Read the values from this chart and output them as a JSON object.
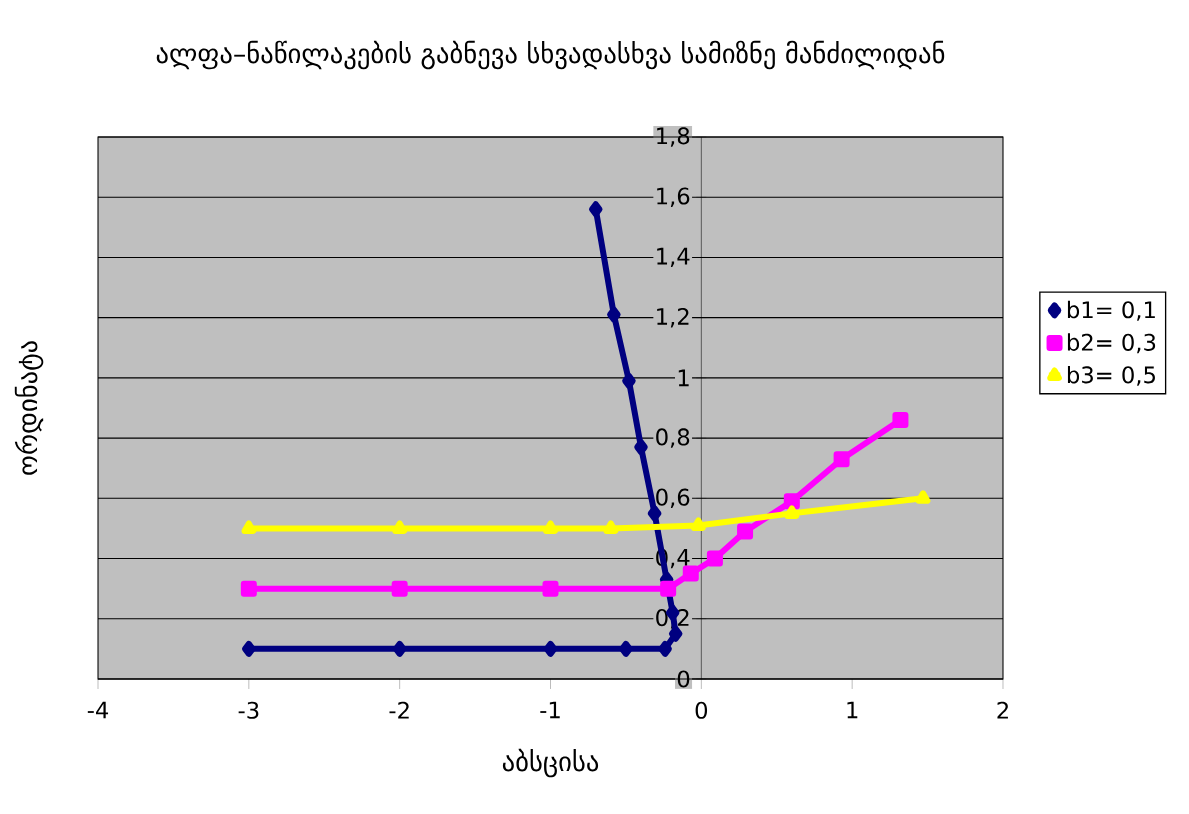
{
  "chart_data": {
    "type": "line",
    "title": "ალფა–ნაწილაკების გაბნევა სხვადასხვა სამიზნე მანძილიდან",
    "xlabel": "აბსცისა",
    "ylabel": "ორდინატა",
    "xlim": [
      -4,
      2
    ],
    "xticks": [
      -4,
      -3,
      -2,
      -1,
      0,
      1,
      2
    ],
    "ylim": [
      0,
      1.8
    ],
    "yticks": [
      {
        "value": 0,
        "label": "0"
      },
      {
        "value": 0.2,
        "label": "0,2"
      },
      {
        "value": 0.4,
        "label": "0,4"
      },
      {
        "value": 0.6,
        "label": "0,6"
      },
      {
        "value": 0.8,
        "label": "0,8"
      },
      {
        "value": 1,
        "label": "1"
      },
      {
        "value": 1.2,
        "label": "1,2"
      },
      {
        "value": 1.4,
        "label": "1,4"
      },
      {
        "value": 1.6,
        "label": "1,6"
      },
      {
        "value": 1.8,
        "label": "1,8"
      }
    ],
    "grid": "y",
    "legend": "right",
    "series": [
      {
        "name": "b1= 0,1",
        "color": "#000080",
        "marker": "diamond",
        "x": [
          -3,
          -2,
          -1,
          -0.5,
          -0.24,
          -0.17,
          -0.19,
          -0.23,
          -0.31,
          -0.4,
          -0.48,
          -0.58,
          -0.7
        ],
        "values": [
          0.1,
          0.1,
          0.1,
          0.1,
          0.1,
          0.15,
          0.22,
          0.33,
          0.55,
          0.77,
          0.99,
          1.21,
          1.56
        ]
      },
      {
        "name": "b2= 0,3",
        "color": "#ff00ff",
        "marker": "square",
        "x": [
          -3,
          -2,
          -1,
          -0.22,
          -0.07,
          0.09,
          0.29,
          0.6,
          0.93,
          1.32
        ],
        "values": [
          0.3,
          0.3,
          0.3,
          0.3,
          0.35,
          0.4,
          0.49,
          0.59,
          0.73,
          0.86
        ]
      },
      {
        "name": "b3= 0,5",
        "color": "#ffff00",
        "marker": "triangle",
        "x": [
          -3,
          -2,
          -1,
          -0.6,
          -0.02,
          0.6,
          1.47
        ],
        "values": [
          0.5,
          0.5,
          0.5,
          0.5,
          0.51,
          0.55,
          0.6
        ]
      }
    ]
  }
}
